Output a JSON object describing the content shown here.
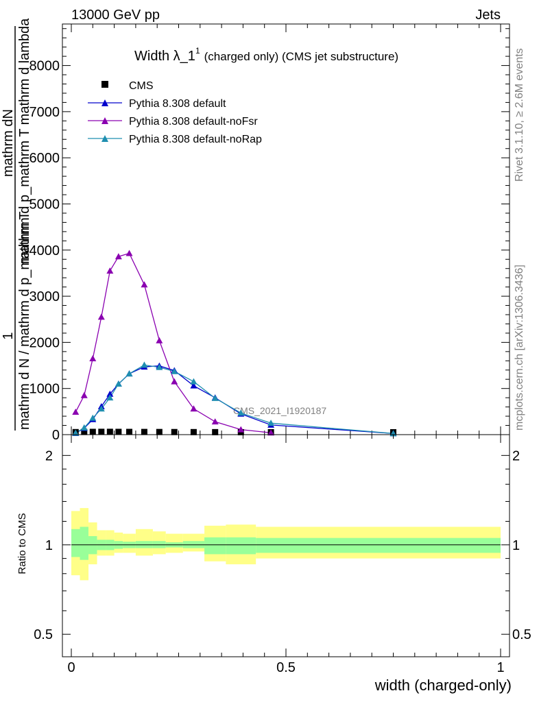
{
  "header": {
    "left": "13000 GeV pp",
    "right": "Jets"
  },
  "side": {
    "rivet": "Rivet 3.1.10, ≥ 2.6M events",
    "mcplots": "mcplots.cern.ch [arXiv:1306.3436]"
  },
  "watermark": "CMS_2021_I1920187",
  "colors": {
    "cms": "#000000",
    "default": "#0000cc",
    "noFsr": "#8a00b0",
    "noRap": "#1f8fb0",
    "band_inner": "#99ff99",
    "band_outer": "#ffff88"
  },
  "chart_data": [
    {
      "type": "line",
      "title": "Width λ_1¹ (charged only) (CMS jet substructure)",
      "title_main": "Width λ_1",
      "title_sup": "1",
      "title_rest": "(charged only) (CMS jet substructure)",
      "ylabel_numerator": "mathrm dN",
      "ylabel_denominator": "mathrm d p_mathrm T mathrm d lambda",
      "ylabel_prefix_numerator": "1",
      "ylabel_prefix_denominator": "mathrm d N / mathrm d p_mathrm T",
      "xlim": [
        0,
        1
      ],
      "ylim": [
        0,
        8900
      ],
      "yticks": [
        0,
        1000,
        2000,
        3000,
        4000,
        5000,
        6000,
        7000,
        8000
      ],
      "ytick_labels": [
        "0",
        "1000",
        "2000",
        "3000",
        "4000",
        "5000",
        "6000",
        "7000",
        "8000"
      ],
      "legend_position": "top-left",
      "series": [
        {
          "name": "CMS",
          "marker": "square",
          "x": [
            0.01,
            0.03,
            0.05,
            0.07,
            0.09,
            0.11,
            0.135,
            0.17,
            0.205,
            0.24,
            0.285,
            0.335,
            0.395,
            0.465,
            0.75
          ],
          "y": [
            3,
            6,
            8,
            9,
            9,
            8,
            7,
            6,
            5,
            4,
            3,
            2,
            1,
            1,
            0
          ]
        },
        {
          "name": "Pythia 8.308 default",
          "marker": "triangle",
          "x": [
            0.01,
            0.03,
            0.05,
            0.07,
            0.09,
            0.11,
            0.135,
            0.17,
            0.205,
            0.24,
            0.285,
            0.335,
            0.395,
            0.465,
            0.75
          ],
          "y": [
            30,
            140,
            330,
            610,
            880,
            1100,
            1320,
            1470,
            1490,
            1390,
            1060,
            800,
            450,
            210,
            25
          ]
        },
        {
          "name": "Pythia 8.308 default-noFsr",
          "marker": "triangle",
          "x": [
            0.01,
            0.03,
            0.05,
            0.07,
            0.09,
            0.11,
            0.135,
            0.17,
            0.205,
            0.24,
            0.285,
            0.335,
            0.395,
            0.465
          ],
          "y": [
            490,
            850,
            1650,
            2550,
            3550,
            3860,
            3930,
            3250,
            2040,
            1150,
            560,
            280,
            110,
            40
          ],
          "yerr": [
            30,
            40,
            50,
            60,
            60,
            60,
            60,
            50,
            40,
            30,
            20,
            15,
            10,
            5
          ]
        },
        {
          "name": "Pythia 8.308 default-noRap",
          "marker": "triangle",
          "x": [
            0.01,
            0.03,
            0.05,
            0.07,
            0.09,
            0.11,
            0.135,
            0.17,
            0.205,
            0.24,
            0.285,
            0.335,
            0.395,
            0.465,
            0.75
          ],
          "y": [
            35,
            150,
            360,
            560,
            800,
            1100,
            1320,
            1510,
            1460,
            1370,
            1150,
            790,
            470,
            250,
            25
          ]
        }
      ]
    },
    {
      "type": "area",
      "ylabel": "Ratio to CMS",
      "xlabel": "width (charged-only)",
      "xlim": [
        0,
        1
      ],
      "xticks": [
        0,
        0.5,
        1
      ],
      "xtick_labels": [
        "0",
        "0.5",
        "1"
      ],
      "ylim": [
        0.42,
        2.35
      ],
      "yscale": "log",
      "yticks": [
        0.5,
        1,
        2
      ],
      "ytick_labels": [
        "0.5",
        "1",
        "2"
      ],
      "bins": [
        0,
        0.02,
        0.04,
        0.06,
        0.08,
        0.1,
        0.12,
        0.15,
        0.19,
        0.22,
        0.26,
        0.31,
        0.36,
        0.43,
        0.5,
        1
      ],
      "inner_band": {
        "lo": [
          0.91,
          0.89,
          0.93,
          0.96,
          0.96,
          0.97,
          0.975,
          0.975,
          0.975,
          0.98,
          0.975,
          0.93,
          0.93,
          0.94,
          0.94
        ],
        "hi": [
          1.13,
          1.15,
          1.07,
          1.04,
          1.04,
          1.03,
          1.025,
          1.03,
          1.03,
          1.02,
          1.03,
          1.06,
          1.06,
          1.055,
          1.055
        ]
      },
      "outer_band": {
        "lo": [
          0.79,
          0.76,
          0.86,
          0.92,
          0.92,
          0.94,
          0.94,
          0.92,
          0.93,
          0.94,
          0.95,
          0.88,
          0.86,
          0.9,
          0.9
        ],
        "hi": [
          1.3,
          1.33,
          1.19,
          1.12,
          1.12,
          1.1,
          1.09,
          1.13,
          1.11,
          1.09,
          1.09,
          1.16,
          1.17,
          1.15,
          1.15
        ]
      },
      "reference": 1
    }
  ]
}
